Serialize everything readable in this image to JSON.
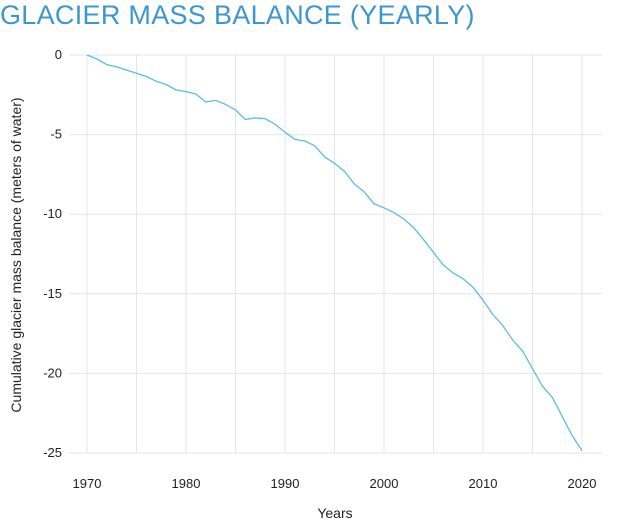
{
  "chart_data": {
    "type": "line",
    "title": "GLACIER MASS BALANCE (YEARLY)",
    "xlabel": "Years",
    "ylabel": "Cumulative glacier mass balance (meters of water)",
    "xlim": [
      1970,
      2020
    ],
    "ylim": [
      -25,
      0
    ],
    "x_ticks": [
      1970,
      1980,
      1990,
      2000,
      2010,
      2020
    ],
    "y_ticks": [
      0,
      -5,
      -10,
      -15,
      -20,
      -25
    ],
    "grid": true,
    "legend": "none",
    "colors": {
      "line": "#5bbde6",
      "title": "#3d97cf",
      "grid": "#e6e6e6"
    },
    "series": [
      {
        "x": [
          1970,
          1971,
          1972,
          1973,
          1974,
          1975,
          1976,
          1977,
          1978,
          1979,
          1980,
          1981,
          1982,
          1983,
          1984,
          1985,
          1986,
          1987,
          1988,
          1989,
          1990,
          1991,
          1992,
          1993,
          1994,
          1995,
          1996,
          1997,
          1998,
          1999,
          2000,
          2001,
          2002,
          2003,
          2004,
          2005,
          2006,
          2007,
          2008,
          2009,
          2010,
          2011,
          2012,
          2013,
          2014,
          2015,
          2016,
          2017,
          2018,
          2019,
          2020
        ],
        "y": [
          0,
          -0.25,
          -0.6,
          -0.75,
          -0.95,
          -1.15,
          -1.35,
          -1.65,
          -1.85,
          -2.2,
          -2.3,
          -2.45,
          -2.95,
          -2.85,
          -3.1,
          -3.45,
          -4.05,
          -3.95,
          -4.0,
          -4.35,
          -4.85,
          -5.3,
          -5.4,
          -5.7,
          -6.4,
          -6.8,
          -7.3,
          -8.1,
          -8.6,
          -9.35,
          -9.6,
          -9.9,
          -10.3,
          -10.85,
          -11.6,
          -12.4,
          -13.2,
          -13.7,
          -14.05,
          -14.6,
          -15.4,
          -16.3,
          -17.0,
          -17.9,
          -18.6,
          -19.7,
          -20.8,
          -21.5,
          -22.7,
          -23.9,
          -24.85
        ]
      }
    ]
  }
}
